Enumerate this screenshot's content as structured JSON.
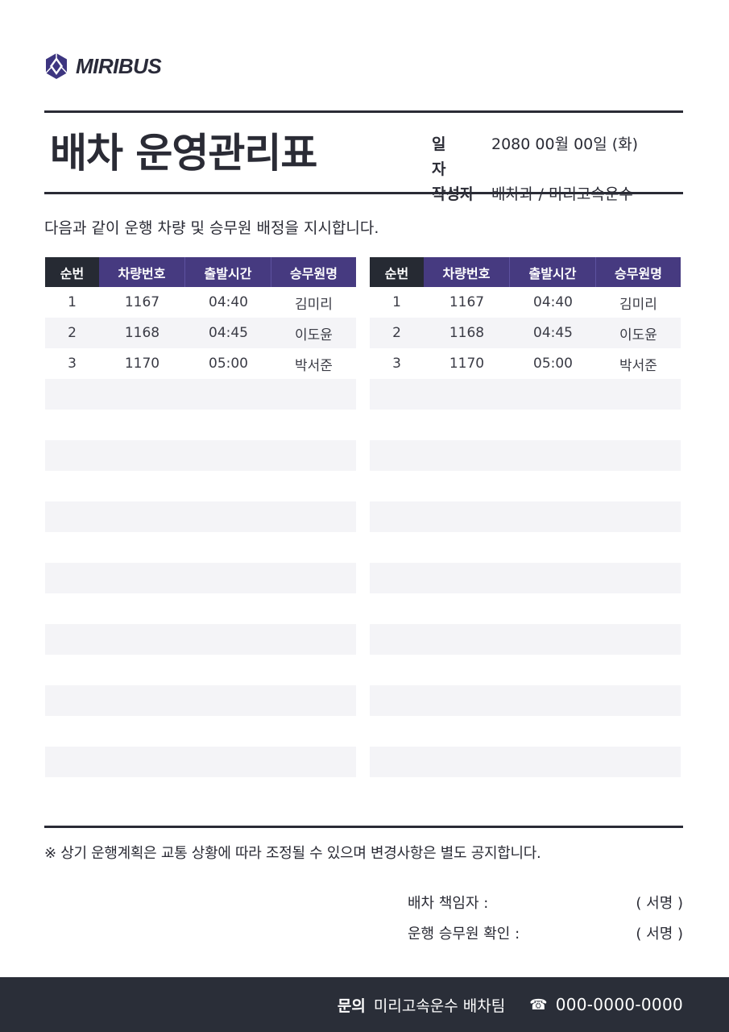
{
  "brand": {
    "name": "MIRIBUS",
    "color": "#3d3580"
  },
  "title": "배차 운영관리표",
  "meta": {
    "date_label": "일 자",
    "date_value": "2080 00월 00일 (화)",
    "author_label": "작성자",
    "author_value": "배차과 / 미리고속운수"
  },
  "intro": "다음과 같이 운행 차량 및 승무원 배정을 지시합니다.",
  "table": {
    "headers": [
      "순번",
      "차량번호",
      "출발시간",
      "승무원명"
    ],
    "rows": [
      [
        "1",
        "1167",
        "04:40",
        "김미리"
      ],
      [
        "2",
        "1168",
        "04:45",
        "이도윤"
      ],
      [
        "3",
        "1170",
        "05:00",
        "박서준"
      ]
    ],
    "total_rows": 16
  },
  "table_right": {
    "headers": [
      "순번",
      "차량번호",
      "출발시간",
      "승무원명"
    ],
    "rows": [
      [
        "1",
        "1167",
        "04:40",
        "김미리"
      ],
      [
        "2",
        "1168",
        "04:45",
        "이도윤"
      ],
      [
        "3",
        "1170",
        "05:00",
        "박서준"
      ]
    ]
  },
  "notice": "※ 상기 운행계획은 교통 상황에 따라 조정될 수 있으며 변경사항은 별도 공지합니다.",
  "signatures": [
    {
      "label": "배차 책임자 :",
      "value": "( 서명 )"
    },
    {
      "label": "운행 승무원 확인 :",
      "value": "( 서명 )"
    }
  ],
  "footer": {
    "label": "문의",
    "team": "미리고속운수 배차팀",
    "phone_icon": "telephone-icon",
    "phone": "000-0000-0000"
  },
  "colors": {
    "header_dark": "#262a33",
    "header_accent": "#463a80",
    "footer_bg": "#2a2e38",
    "row_shade": "#f4f4f7"
  }
}
